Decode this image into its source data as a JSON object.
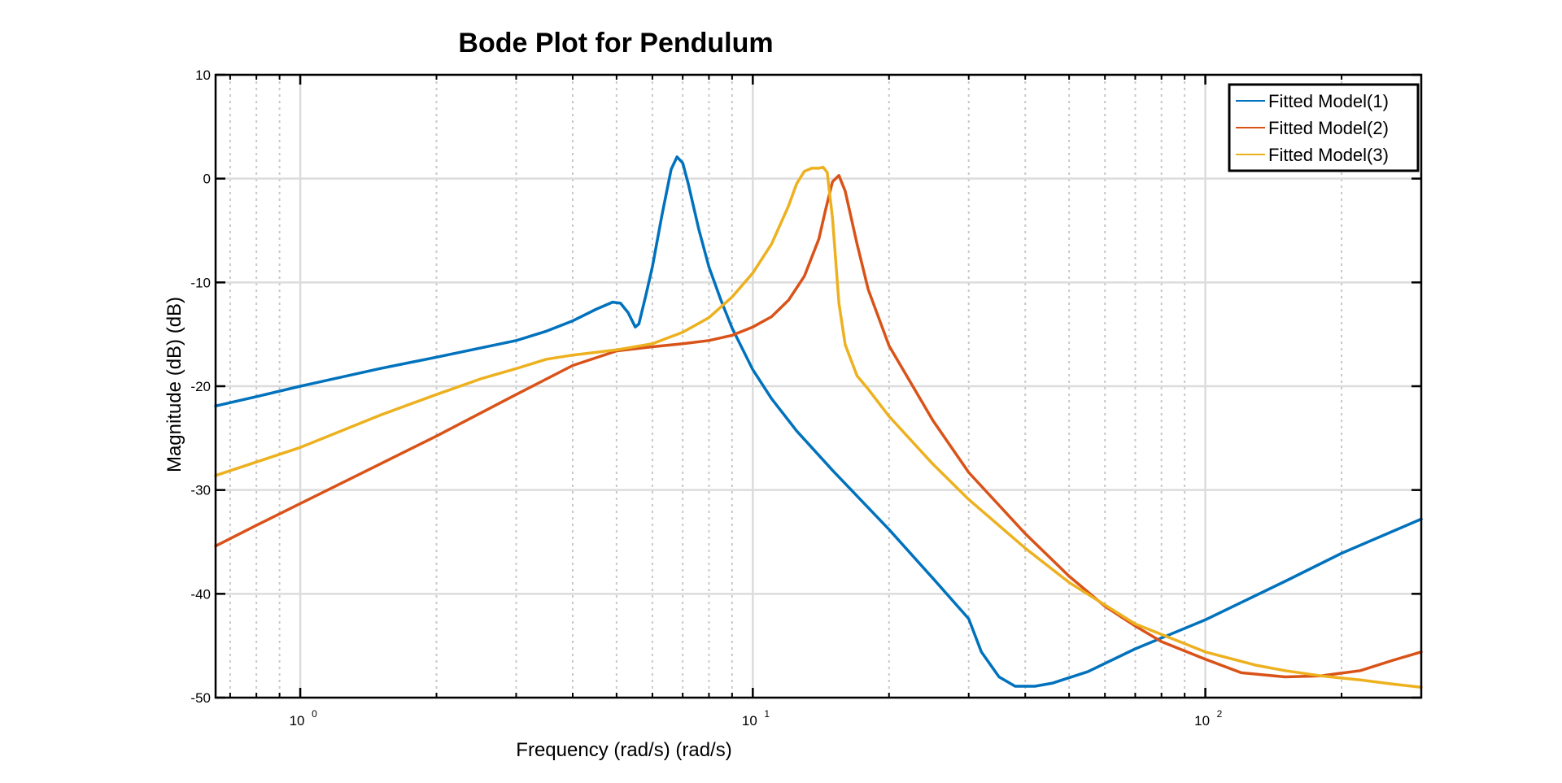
{
  "chart_data": {
    "type": "line",
    "title": "Bode Plot for Pendulum",
    "xlabel": "Frequency (rad/s)  (rad/s)",
    "ylabel": "Magnitude (dB) (dB)",
    "xscale": "log",
    "xlim": [
      0.65,
      300
    ],
    "ylim": [
      -50,
      10
    ],
    "yticks": [
      10,
      0,
      -10,
      -20,
      -30,
      -40,
      -50
    ],
    "ytick_labels": [
      "10",
      "0",
      "-10",
      "-20",
      "-30",
      "-40",
      "-50"
    ],
    "xticks": [
      1,
      10,
      100
    ],
    "xtick_labels": [
      {
        "base": "10",
        "exp": "0"
      },
      {
        "base": "10",
        "exp": "1"
      },
      {
        "base": "10",
        "exp": "2"
      }
    ],
    "grid": true,
    "legend_position": "top-right",
    "series": [
      {
        "name": "Fitted Model(1)",
        "color": "#0072BD",
        "points": [
          [
            0.65,
            -21.9
          ],
          [
            0.8,
            -21.0
          ],
          [
            1.0,
            -20.0
          ],
          [
            1.5,
            -18.3
          ],
          [
            2.0,
            -17.2
          ],
          [
            3.0,
            -15.6
          ],
          [
            3.5,
            -14.7
          ],
          [
            4.0,
            -13.7
          ],
          [
            4.5,
            -12.6
          ],
          [
            4.9,
            -11.9
          ],
          [
            5.1,
            -12.0
          ],
          [
            5.3,
            -12.9
          ],
          [
            5.5,
            -14.3
          ],
          [
            5.6,
            -14.0
          ],
          [
            5.8,
            -11.3
          ],
          [
            6.0,
            -8.5
          ],
          [
            6.3,
            -3.5
          ],
          [
            6.6,
            0.9
          ],
          [
            6.8,
            2.1
          ],
          [
            7.0,
            1.5
          ],
          [
            7.2,
            -0.5
          ],
          [
            7.6,
            -4.9
          ],
          [
            8.0,
            -8.5
          ],
          [
            8.5,
            -11.7
          ],
          [
            9.0,
            -14.4
          ],
          [
            10.0,
            -18.4
          ],
          [
            11.0,
            -21.2
          ],
          [
            12.5,
            -24.3
          ],
          [
            15.0,
            -28.1
          ],
          [
            20.0,
            -33.8
          ],
          [
            25.0,
            -38.5
          ],
          [
            30.0,
            -42.4
          ],
          [
            32.0,
            -45.6
          ],
          [
            35.0,
            -48.0
          ],
          [
            38.0,
            -48.9
          ],
          [
            42.0,
            -48.9
          ],
          [
            46.0,
            -48.6
          ],
          [
            55.0,
            -47.5
          ],
          [
            70.0,
            -45.3
          ],
          [
            100.0,
            -42.5
          ],
          [
            150.0,
            -38.8
          ],
          [
            200.0,
            -36.1
          ],
          [
            300.0,
            -32.8
          ]
        ]
      },
      {
        "name": "Fitted Model(2)",
        "color": "#D95319",
        "points": [
          [
            0.65,
            -35.4
          ],
          [
            0.8,
            -33.4
          ],
          [
            1.0,
            -31.3
          ],
          [
            1.5,
            -27.5
          ],
          [
            2.0,
            -24.8
          ],
          [
            3.0,
            -20.8
          ],
          [
            4.0,
            -18.0
          ],
          [
            5.0,
            -16.6
          ],
          [
            6.0,
            -16.2
          ],
          [
            7.0,
            -15.9
          ],
          [
            8.0,
            -15.6
          ],
          [
            9.0,
            -15.1
          ],
          [
            10.0,
            -14.3
          ],
          [
            11.0,
            -13.3
          ],
          [
            12.0,
            -11.7
          ],
          [
            13.0,
            -9.4
          ],
          [
            14.0,
            -5.8
          ],
          [
            14.5,
            -2.9
          ],
          [
            15.0,
            -0.3
          ],
          [
            15.5,
            0.3
          ],
          [
            16.0,
            -1.2
          ],
          [
            17.0,
            -6.3
          ],
          [
            18.0,
            -10.7
          ],
          [
            20.0,
            -16.1
          ],
          [
            25.0,
            -23.3
          ],
          [
            30.0,
            -28.3
          ],
          [
            40.0,
            -34.2
          ],
          [
            50.0,
            -38.3
          ],
          [
            60.0,
            -41.2
          ],
          [
            70.0,
            -43.1
          ],
          [
            80.0,
            -44.6
          ],
          [
            100.0,
            -46.3
          ],
          [
            120.0,
            -47.6
          ],
          [
            150.0,
            -48.0
          ],
          [
            180.0,
            -47.9
          ],
          [
            220.0,
            -47.4
          ],
          [
            260.0,
            -46.4
          ],
          [
            300.0,
            -45.6
          ]
        ]
      },
      {
        "name": "Fitted Model(3)",
        "color": "#EDB120",
        "points": [
          [
            0.65,
            -28.6
          ],
          [
            0.8,
            -27.3
          ],
          [
            1.0,
            -25.9
          ],
          [
            1.5,
            -22.8
          ],
          [
            2.0,
            -20.8
          ],
          [
            2.5,
            -19.3
          ],
          [
            3.0,
            -18.3
          ],
          [
            3.5,
            -17.4
          ],
          [
            4.0,
            -17.0
          ],
          [
            5.0,
            -16.5
          ],
          [
            6.0,
            -15.9
          ],
          [
            7.0,
            -14.8
          ],
          [
            8.0,
            -13.4
          ],
          [
            9.0,
            -11.4
          ],
          [
            10.0,
            -9.1
          ],
          [
            11.0,
            -6.3
          ],
          [
            12.0,
            -2.6
          ],
          [
            12.5,
            -0.5
          ],
          [
            13.0,
            0.7
          ],
          [
            13.5,
            1.0
          ],
          [
            14.0,
            1.0
          ],
          [
            14.3,
            1.1
          ],
          [
            14.6,
            0.6
          ],
          [
            15.0,
            -3.8
          ],
          [
            15.5,
            -12.0
          ],
          [
            16.0,
            -16.0
          ],
          [
            17.0,
            -19.0
          ],
          [
            18.0,
            -20.3
          ],
          [
            20.0,
            -22.9
          ],
          [
            25.0,
            -27.5
          ],
          [
            30.0,
            -30.9
          ],
          [
            40.0,
            -35.6
          ],
          [
            50.0,
            -38.9
          ],
          [
            70.0,
            -42.9
          ],
          [
            100.0,
            -45.6
          ],
          [
            130.0,
            -46.9
          ],
          [
            150.0,
            -47.4
          ],
          [
            180.0,
            -47.9
          ],
          [
            220.0,
            -48.3
          ],
          [
            260.0,
            -48.7
          ],
          [
            300.0,
            -49.0
          ]
        ]
      }
    ]
  }
}
